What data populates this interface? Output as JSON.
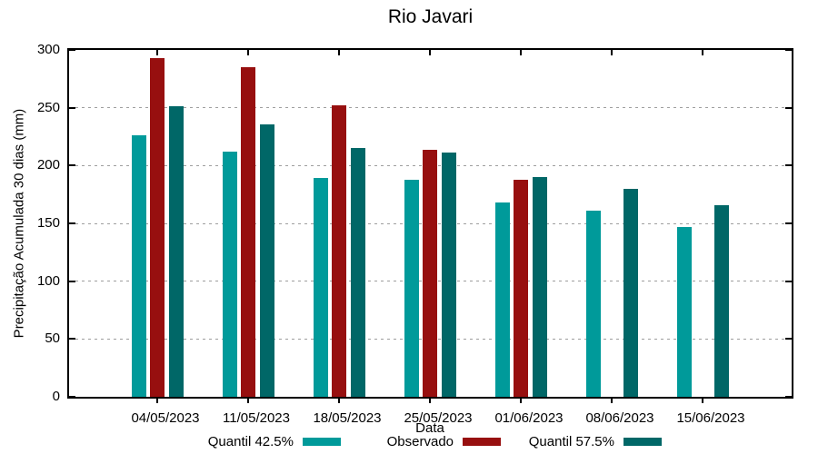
{
  "chart_data": {
    "type": "bar",
    "title": "Rio Javari",
    "xlabel": "Data",
    "ylabel": "Precipitação Acumulada 30 dias (mm)",
    "categories": [
      "04/05/2023",
      "11/05/2023",
      "18/05/2023",
      "25/05/2023",
      "01/06/2023",
      "08/06/2023",
      "15/06/2023"
    ],
    "series": [
      {
        "name": "Quantil 42.5%",
        "color": "#009a9a",
        "values": [
          226,
          212,
          189,
          188,
          168,
          161,
          147
        ]
      },
      {
        "name": "Observado",
        "color": "#970f0f",
        "values": [
          293,
          285,
          252,
          214,
          188,
          null,
          null
        ]
      },
      {
        "name": "Quantil 57.5%",
        "color": "#006767",
        "values": [
          251,
          236,
          215,
          211,
          190,
          180,
          166
        ]
      }
    ],
    "ylim": [
      0,
      300
    ],
    "yticks": [
      0,
      50,
      100,
      150,
      200,
      250,
      300
    ],
    "grid": true,
    "legend_position": "bottom"
  }
}
